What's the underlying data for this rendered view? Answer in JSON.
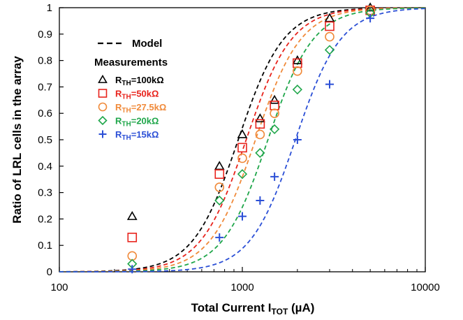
{
  "chart_data": {
    "type": "scatter",
    "title": "",
    "xlabel": {
      "main": "Total Current I",
      "sub": "TOT",
      "suffix": " (µA)"
    },
    "ylabel": "Ratio of LRL cells in the array",
    "xscale": "log",
    "xlim": [
      100,
      10000
    ],
    "ylim": [
      0,
      1
    ],
    "xticks": [
      100,
      1000,
      10000
    ],
    "xtick_labels": [
      "100",
      "1000",
      "10000"
    ],
    "yticks": [
      0,
      0.1,
      0.2,
      0.3,
      0.4,
      0.5,
      0.6,
      0.7,
      0.8,
      0.9,
      1
    ],
    "ytick_labels": [
      "0",
      "0.1",
      "0.2",
      "0.3",
      "0.4",
      "0.5",
      "0.6",
      "0.7",
      "0.8",
      "0.9",
      "1"
    ],
    "grid": false,
    "legend": {
      "placement": "top-left",
      "model_label": "Model",
      "measurements_label": "Measurements"
    },
    "series": [
      {
        "label_main": "R",
        "label_sub": "TH",
        "label_value": "=100kΩ",
        "marker": "triangle",
        "color": "#000000",
        "label_color": "#000000",
        "model_color": "#000000",
        "model_i50": 950,
        "x": [
          250,
          750,
          1000,
          1250,
          1500,
          2000,
          3000,
          5000
        ],
        "y": [
          0.21,
          0.4,
          0.52,
          0.58,
          0.65,
          0.8,
          0.96,
          1.0
        ]
      },
      {
        "label_main": "R",
        "label_sub": "TH",
        "label_value": "=50kΩ",
        "marker": "square",
        "color": "#e8231c",
        "label_color": "#e8231c",
        "model_color": "#e8231c",
        "model_i50": 1050,
        "x": [
          250,
          750,
          1000,
          1250,
          1500,
          2000,
          3000,
          5000
        ],
        "y": [
          0.13,
          0.37,
          0.47,
          0.56,
          0.63,
          0.79,
          0.93,
          0.99
        ]
      },
      {
        "label_main": "R",
        "label_sub": "TH",
        "label_value": "=27.5kΩ",
        "marker": "circle",
        "color": "#f08a3a",
        "label_color": "#f08a3a",
        "model_color": "#f08a3a",
        "model_i50": 1180,
        "x": [
          250,
          750,
          1000,
          1250,
          1500,
          2000,
          3000,
          5000
        ],
        "y": [
          0.06,
          0.32,
          0.43,
          0.52,
          0.6,
          0.76,
          0.89,
          0.99
        ]
      },
      {
        "label_main": "R",
        "label_sub": "TH",
        "label_value": "=20kΩ",
        "marker": "diamond",
        "color": "#1fa64a",
        "label_color": "#1fa64a",
        "model_color": "#1fa64a",
        "model_i50": 1380,
        "x": [
          250,
          750,
          1000,
          1250,
          1500,
          2000,
          3000,
          5000
        ],
        "y": [
          0.03,
          0.27,
          0.37,
          0.45,
          0.54,
          0.69,
          0.84,
          0.98
        ]
      },
      {
        "label_main": "R",
        "label_sub": "TH",
        "label_value": "=15kΩ",
        "marker": "plus",
        "color": "#2b4fd6",
        "label_color": "#2b4fd6",
        "model_color": "#2b4fd6",
        "model_i50": 1950,
        "x": [
          250,
          750,
          1000,
          1250,
          1500,
          2000,
          3000,
          5000
        ],
        "y": [
          0.01,
          0.13,
          0.21,
          0.27,
          0.36,
          0.5,
          0.71,
          0.96
        ]
      }
    ]
  }
}
